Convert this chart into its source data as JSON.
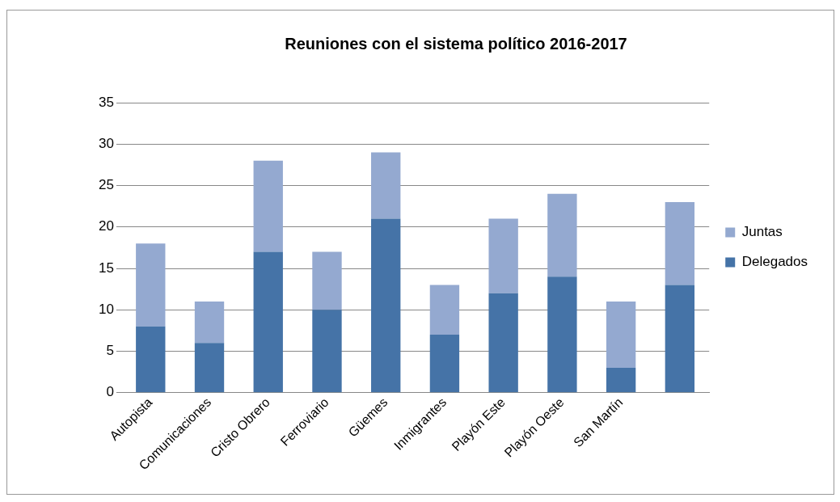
{
  "chart_data": {
    "type": "bar",
    "title": "Reuniones con el sistema político 2016-2017",
    "stacked": true,
    "categories": [
      "Autopista",
      "Comunicaciones",
      "Cristo Obrero",
      "Ferroviario",
      "Güemes",
      "Inmigrantes",
      "Playón Este",
      "Playón Oeste",
      "San Martín",
      null
    ],
    "series": [
      {
        "name": "Delegados",
        "color": "#4573a7",
        "values": [
          8,
          6,
          17,
          10,
          21,
          7,
          12,
          14,
          3,
          13
        ]
      },
      {
        "name": "Juntas",
        "color": "#94a9d0",
        "values": [
          10,
          5,
          11,
          7,
          8,
          6,
          9,
          10,
          8,
          10
        ]
      }
    ],
    "ylim": [
      0,
      35
    ],
    "yticks": [
      0,
      5,
      10,
      15,
      20,
      25,
      30,
      35
    ],
    "grid": "y",
    "legend": "right"
  }
}
